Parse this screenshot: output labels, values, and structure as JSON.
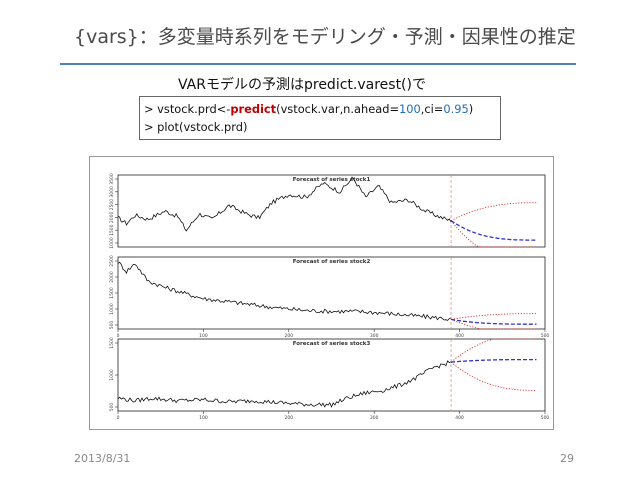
{
  "slide": {
    "title": "{vars}：多変量時系列をモデリング・予測・因果性の推定",
    "subtitle": "VARモデルの予測はpredict.varest()で",
    "footer_date": "2013/8/31",
    "page_number": "29"
  },
  "code": {
    "line1": [
      {
        "text": "> vstock.prd<-",
        "style": "plain"
      },
      {
        "text": "predict",
        "style": "kw"
      },
      {
        "text": "(vstock.var,n.ahead=",
        "style": "plain"
      },
      {
        "text": "100",
        "style": "num"
      },
      {
        "text": ",ci=",
        "style": "plain"
      },
      {
        "text": "0.95",
        "style": "num"
      },
      {
        "text": ")",
        "style": "plain"
      }
    ],
    "line2": "> plot(vstock.prd)"
  },
  "colors": {
    "accent_rule": "#4f81bd",
    "forecast": "#3333cc",
    "ci": "#e03030",
    "split_line": "#e08080"
  },
  "chart_data": [
    {
      "type": "line",
      "title": "Forecast of series stock1",
      "x_ticks": [],
      "y_ticks": [
        "1000",
        "1500",
        "2000",
        "2500",
        "3000",
        "3500"
      ],
      "history_len": 390,
      "n_ahead": 100,
      "xlim": [
        0,
        500
      ],
      "ylim": [
        1000,
        3600
      ],
      "anchors": [
        [
          0,
          2050
        ],
        [
          10,
          1850
        ],
        [
          20,
          2150
        ],
        [
          35,
          2000
        ],
        [
          55,
          2300
        ],
        [
          70,
          2100
        ],
        [
          80,
          1600
        ],
        [
          95,
          2200
        ],
        [
          110,
          2000
        ],
        [
          130,
          2500
        ],
        [
          150,
          2200
        ],
        [
          165,
          2050
        ],
        [
          180,
          2600
        ],
        [
          200,
          2900
        ],
        [
          220,
          2800
        ],
        [
          240,
          3300
        ],
        [
          260,
          3000
        ],
        [
          275,
          3500
        ],
        [
          290,
          2800
        ],
        [
          305,
          3200
        ],
        [
          320,
          2600
        ],
        [
          340,
          2700
        ],
        [
          360,
          2300
        ],
        [
          380,
          2050
        ],
        [
          390,
          1950
        ]
      ],
      "forecast_end": 1250,
      "ci_upper_end": 2600,
      "ci_lower_end": 400
    },
    {
      "type": "line",
      "title": "Forecast of series stock2",
      "x_ticks": [
        "0",
        "100",
        "200",
        "300",
        "400",
        "500"
      ],
      "y_ticks": [
        "500",
        "1000",
        "1500",
        "2000",
        "2500"
      ],
      "history_len": 390,
      "n_ahead": 100,
      "xlim": [
        0,
        500
      ],
      "ylim": [
        400,
        2650
      ],
      "anchors": [
        [
          0,
          2500
        ],
        [
          10,
          2200
        ],
        [
          20,
          2450
        ],
        [
          35,
          1900
        ],
        [
          55,
          1700
        ],
        [
          80,
          1500
        ],
        [
          100,
          1350
        ],
        [
          130,
          1250
        ],
        [
          160,
          1150
        ],
        [
          190,
          1050
        ],
        [
          220,
          980
        ],
        [
          250,
          950
        ],
        [
          280,
          950
        ],
        [
          310,
          900
        ],
        [
          340,
          830
        ],
        [
          370,
          760
        ],
        [
          390,
          700
        ]
      ],
      "forecast_end": 550,
      "ci_upper_end": 880,
      "ci_lower_end": 250
    },
    {
      "type": "line",
      "title": "Forecast of series stock3",
      "x_ticks": [
        "0",
        "100",
        "200",
        "300",
        "400",
        "500"
      ],
      "y_ticks": [
        "500",
        "1000",
        "1500"
      ],
      "history_len": 390,
      "n_ahead": 100,
      "xlim": [
        0,
        500
      ],
      "ylim": [
        300,
        1700
      ],
      "anchors": [
        [
          0,
          550
        ],
        [
          20,
          500
        ],
        [
          40,
          550
        ],
        [
          70,
          500
        ],
        [
          100,
          520
        ],
        [
          130,
          480
        ],
        [
          160,
          500
        ],
        [
          190,
          460
        ],
        [
          220,
          430
        ],
        [
          250,
          420
        ],
        [
          270,
          560
        ],
        [
          290,
          650
        ],
        [
          310,
          700
        ],
        [
          330,
          800
        ],
        [
          350,
          950
        ],
        [
          370,
          1150
        ],
        [
          390,
          1250
        ]
      ],
      "forecast_end": 1300,
      "ci_upper_end": 1800,
      "ci_lower_end": 700
    }
  ]
}
